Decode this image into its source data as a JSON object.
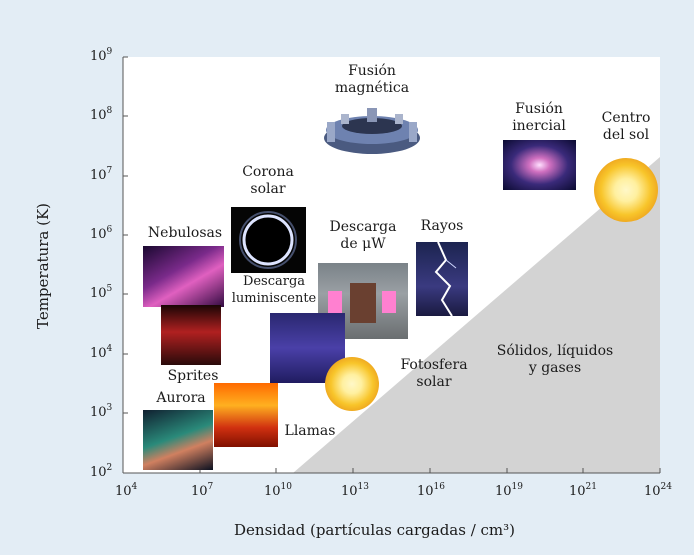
{
  "figure": {
    "ylabel": "Temperatura (K)",
    "xlabel": "Densidad (partículas cargadas / cm³)"
  },
  "axes": {
    "x_ticks": [
      {
        "base": "10",
        "exp": "4"
      },
      {
        "base": "10",
        "exp": "7"
      },
      {
        "base": "10",
        "exp": "10"
      },
      {
        "base": "10",
        "exp": "13"
      },
      {
        "base": "10",
        "exp": "16"
      },
      {
        "base": "10",
        "exp": "19"
      },
      {
        "base": "10",
        "exp": "21"
      },
      {
        "base": "10",
        "exp": "24"
      }
    ],
    "y_ticks": [
      {
        "base": "10",
        "exp": "2"
      },
      {
        "base": "10",
        "exp": "3"
      },
      {
        "base": "10",
        "exp": "4"
      },
      {
        "base": "10",
        "exp": "5"
      },
      {
        "base": "10",
        "exp": "6"
      },
      {
        "base": "10",
        "exp": "7"
      },
      {
        "base": "10",
        "exp": "8"
      },
      {
        "base": "10",
        "exp": "9"
      }
    ]
  },
  "labels": {
    "fusion_magnetica": [
      "Fusión",
      "magnética"
    ],
    "fusion_inercial": [
      "Fusión",
      "inercial"
    ],
    "centro_sol": [
      "Centro",
      "del sol"
    ],
    "corona_solar": [
      "Corona",
      "solar"
    ],
    "nebulosas": "Nebulosas",
    "descarga_uw": [
      "Descarga",
      "de μW"
    ],
    "rayos": "Rayos",
    "descarga_luminiscente": [
      "Descarga",
      "luminiscente"
    ],
    "fotosfera_solar": [
      "Fotosfera",
      "solar"
    ],
    "solidos": [
      "Sólidos, líquidos",
      "y gases"
    ],
    "sprites": "Sprites",
    "aurora": "Aurora",
    "llamas": "Llamas"
  },
  "colors": {
    "background": "#e3edf5",
    "plot": "#ffffff",
    "solid_region": "#d3d3d3",
    "sun_core": "#fff8c8",
    "sun_mid": "#f8c52a",
    "sun_edge": "#e07a10"
  }
}
